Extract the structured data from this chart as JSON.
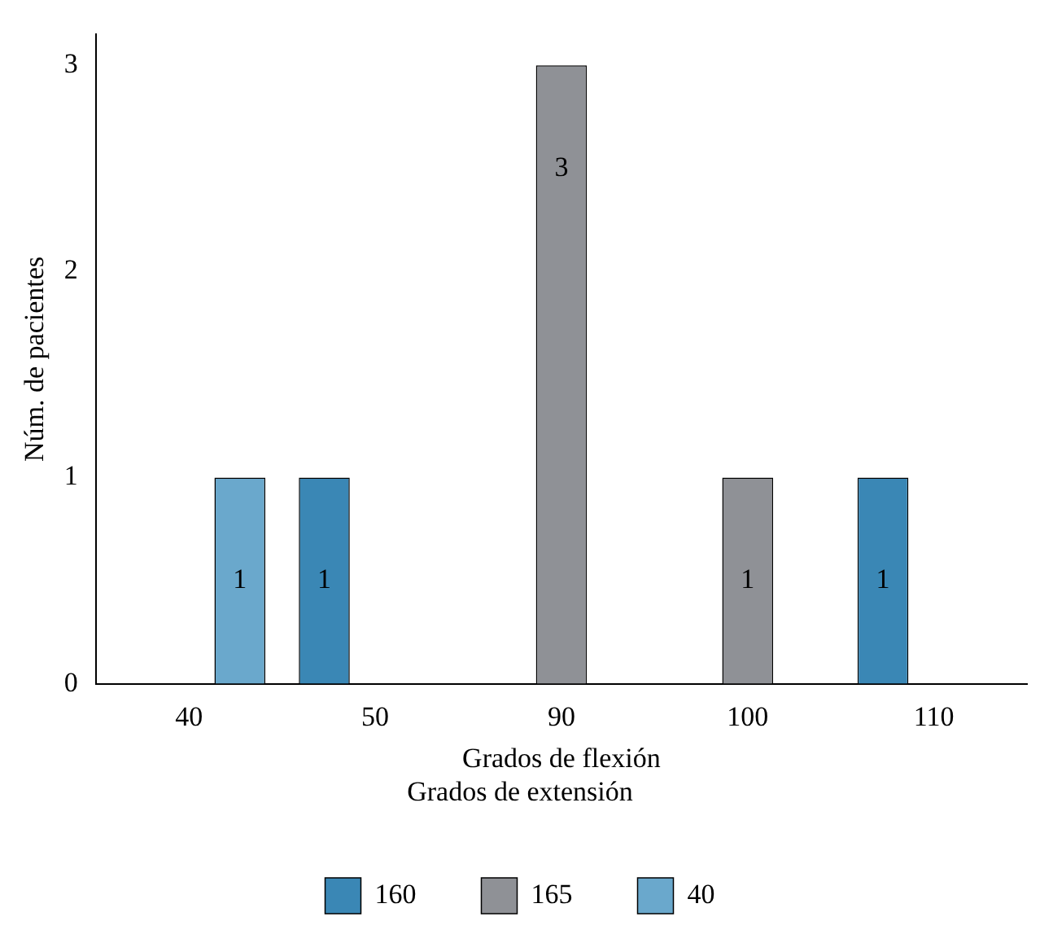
{
  "chart_data": {
    "type": "bar",
    "xlabel": "Grados de flexión",
    "ylabel": "Núm. de pacientes",
    "legend_title": "Grados de extensión",
    "categories": [
      "40",
      "50",
      "90",
      "100",
      "110"
    ],
    "series": [
      {
        "name": "160",
        "color": "#3a87b5",
        "values": [
          null,
          1,
          null,
          null,
          1
        ]
      },
      {
        "name": "165",
        "color": "#8f9196",
        "values": [
          null,
          null,
          3,
          1,
          null
        ]
      },
      {
        "name": "40",
        "color": "#6aa8cc",
        "values": [
          1,
          null,
          null,
          null,
          null
        ]
      }
    ],
    "ylim": [
      0,
      3.15
    ],
    "yticks": [
      0,
      1,
      2,
      3
    ],
    "grid": false,
    "legend": "bottom",
    "data_labels": true
  }
}
